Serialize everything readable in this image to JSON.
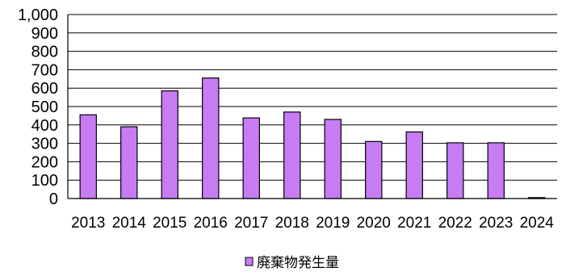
{
  "chart_data": {
    "type": "bar",
    "title": "",
    "xlabel": "",
    "ylabel": "",
    "categories": [
      "2013",
      "2014",
      "2015",
      "2016",
      "2017",
      "2018",
      "2019",
      "2020",
      "2021",
      "2022",
      "2023",
      "2024"
    ],
    "series": [
      {
        "name": "廃棄物発生量",
        "color": "#c77cf4",
        "values": [
          455,
          390,
          585,
          655,
          438,
          470,
          430,
          310,
          362,
          303,
          303,
          5
        ]
      }
    ],
    "ylim": [
      0,
      1000
    ],
    "yticks": [
      0,
      100,
      200,
      300,
      400,
      500,
      600,
      700,
      800,
      900,
      1000
    ],
    "ytick_labels": [
      "0",
      "100",
      "200",
      "300",
      "400",
      "500",
      "600",
      "700",
      "800",
      "900",
      "1,000"
    ],
    "grid": true,
    "legend_position": "bottom-center"
  }
}
